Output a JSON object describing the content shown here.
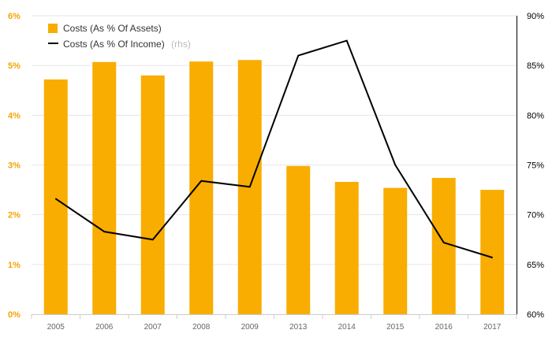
{
  "chart_data": {
    "type": "bar",
    "categories": [
      "2005",
      "2006",
      "2007",
      "2008",
      "2009",
      "2013",
      "2014",
      "2015",
      "2016",
      "2017"
    ],
    "series": [
      {
        "name": "Costs (As % Of Assets)",
        "type": "bar",
        "axis": "left",
        "color": "#f8ad00",
        "values": [
          4.72,
          5.07,
          4.8,
          5.08,
          5.11,
          2.98,
          2.66,
          2.54,
          2.74,
          2.5
        ]
      },
      {
        "name": "Costs (As % Of Income)",
        "axis_note": "(rhs)",
        "type": "line",
        "axis": "right",
        "color": "#000000",
        "values": [
          71.6,
          68.3,
          67.5,
          73.4,
          72.8,
          86.0,
          87.5,
          75.0,
          67.2,
          65.7
        ]
      }
    ],
    "y_left": {
      "ylim": [
        0,
        6
      ],
      "ticks": [
        "0%",
        "1%",
        "2%",
        "3%",
        "4%",
        "5%",
        "6%"
      ]
    },
    "y_right": {
      "ylim": [
        60,
        90
      ],
      "ticks": [
        "60%",
        "65%",
        "70%",
        "75%",
        "80%",
        "85%",
        "90%"
      ]
    },
    "grid": true,
    "legend_position": "top-left"
  }
}
